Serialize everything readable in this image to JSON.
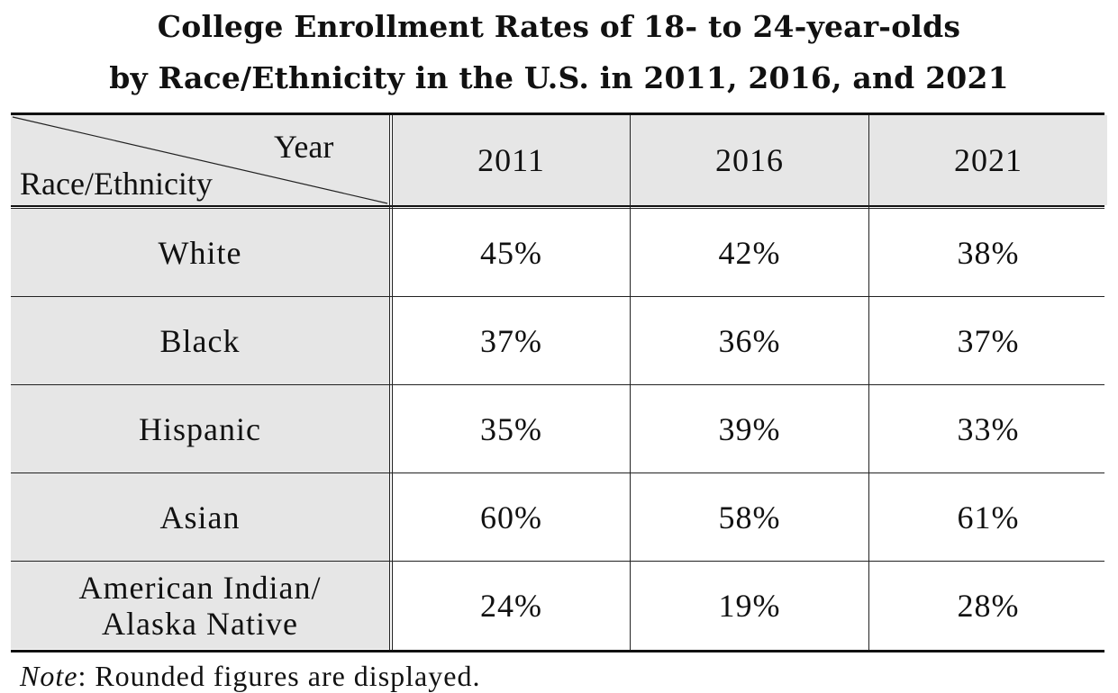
{
  "title_line1": "College Enrollment Rates of 18- to 24-year-olds",
  "title_line2": "by Race/Ethnicity in the U.S. in 2011, 2016, and 2021",
  "header": {
    "col_label": "Year",
    "row_label": "Race/Ethnicity"
  },
  "note": {
    "label": "Note",
    "text": ": Rounded figures are displayed."
  },
  "chart_data": {
    "type": "table",
    "title": "College Enrollment Rates of 18- to 24-year-olds by Race/Ethnicity in the U.S. in 2011, 2016, and 2021",
    "columns": [
      "2011",
      "2016",
      "2021"
    ],
    "rows": [
      {
        "label": "White",
        "values": [
          "45%",
          "42%",
          "38%"
        ]
      },
      {
        "label": "Black",
        "values": [
          "37%",
          "36%",
          "37%"
        ]
      },
      {
        "label": "Hispanic",
        "values": [
          "35%",
          "39%",
          "33%"
        ]
      },
      {
        "label": "Asian",
        "values": [
          "60%",
          "58%",
          "61%"
        ]
      },
      {
        "label": "American Indian/ Alaska Native",
        "label_lines": [
          "American Indian/",
          "Alaska Native"
        ],
        "values": [
          "24%",
          "19%",
          "28%"
        ]
      }
    ]
  }
}
